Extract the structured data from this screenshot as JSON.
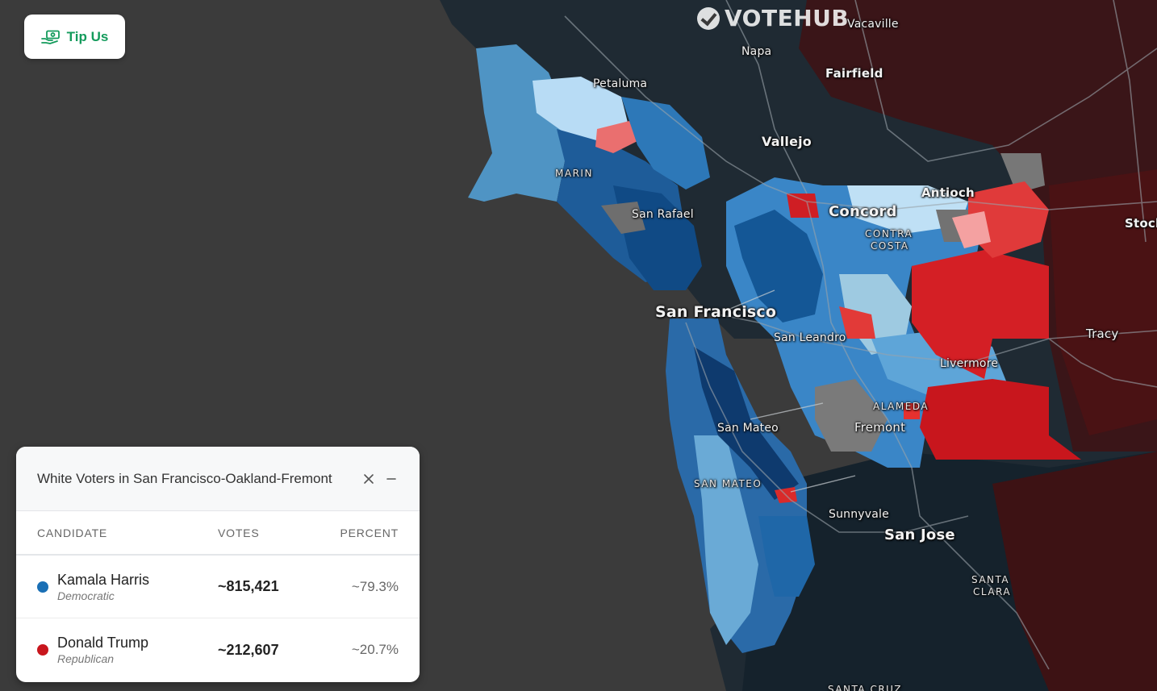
{
  "brand": {
    "name": "VOTEHUB"
  },
  "tip_button": {
    "label": "Tip Us",
    "icon": "hand-money-icon",
    "color": "#149b5c"
  },
  "map": {
    "places": {
      "vacaville": "Vacaville",
      "napa": "Napa",
      "petaluma": "Petaluma",
      "fairfield": "Fairfield",
      "vallejo": "Vallejo",
      "marin": "MARIN",
      "san_rafael": "San Rafael",
      "antioch": "Antioch",
      "concord": "Concord",
      "contra_costa_1": "CONTRA",
      "contra_costa_2": "COSTA",
      "stockton": "Stock",
      "san_francisco": "San Francisco",
      "san_leandro": "San Leandro",
      "tracy": "Tracy",
      "livermore": "Livermore",
      "alameda": "ALAMEDA",
      "fremont": "Fremont",
      "san_mateo_city": "San Mateo",
      "san_mateo_county": "SAN MATEO",
      "sunnyvale": "Sunnyvale",
      "san_jose": "San Jose",
      "santa_clara_1": "SANTA",
      "santa_clara_2": "CLARA",
      "santa_cruz": "SANTA CRUZ"
    }
  },
  "results_panel": {
    "title": "White Voters in San Francisco-Oakland-Fremont",
    "columns": {
      "candidate": "CANDIDATE",
      "votes": "VOTES",
      "percent": "PERCENT"
    },
    "rows": [
      {
        "name": "Kamala Harris",
        "party": "Democratic",
        "votes": "~815,421",
        "percent": "~79.3%",
        "color": "#1a6fb5"
      },
      {
        "name": "Donald Trump",
        "party": "Republican",
        "votes": "~212,607",
        "percent": "~20.7%",
        "color": "#c8161d"
      }
    ]
  },
  "colors": {
    "dem_dark": "#08306b",
    "dem_mid": "#2171b5",
    "dem_light": "#9ecae1",
    "rep_dark": "#a50f15",
    "rep_mid": "#de2d26",
    "rep_light": "#fc9272",
    "no_data": "#7a7a7a",
    "ocean": "#3b3b3b"
  }
}
